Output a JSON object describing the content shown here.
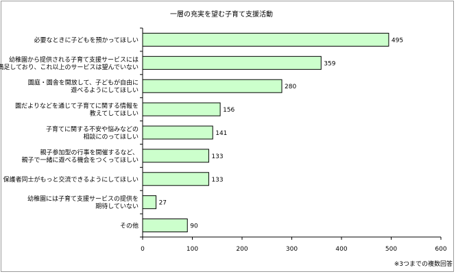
{
  "chart_data": {
    "type": "bar",
    "orientation": "horizontal",
    "title": "一層の充実を望む子育て支援活動",
    "categories": [
      [
        "必要なときに子どもを預かってほしい"
      ],
      [
        "幼稚園から提供される子育て支援サービスには",
        "十分満足しており、これ以上のサービスは望んでいない"
      ],
      [
        "園庭・園舎を開放して、子どもが自由に",
        "遊べるようにしてほしい"
      ],
      [
        "園だよりなどを通じて子育てに関する情報を",
        "教えてしてほしい"
      ],
      [
        "子育てに関する不安や悩みなどの",
        "相談にのってほしい"
      ],
      [
        "親子参加型の行事を開催するなど、",
        "親子で一緒に遊べる機会をつくってほしい"
      ],
      [
        "保護者同士がもっと交流できるようにしてほしい"
      ],
      [
        "幼稚園には子育て支援サービスの提供を",
        "期待していない"
      ],
      [
        "その他"
      ]
    ],
    "values": [
      495,
      359,
      280,
      156,
      141,
      133,
      133,
      27,
      90
    ],
    "xlim": [
      0,
      600
    ],
    "xticks": [
      0,
      100,
      200,
      300,
      400,
      500,
      600
    ],
    "xtick_labels": [
      "0",
      "100",
      "200",
      "300",
      "400",
      "500",
      "600"
    ],
    "bar_color": "#ccffcc",
    "bar_edge_color": "#000000",
    "grid": false,
    "note": "※3つまでの複数回答"
  }
}
